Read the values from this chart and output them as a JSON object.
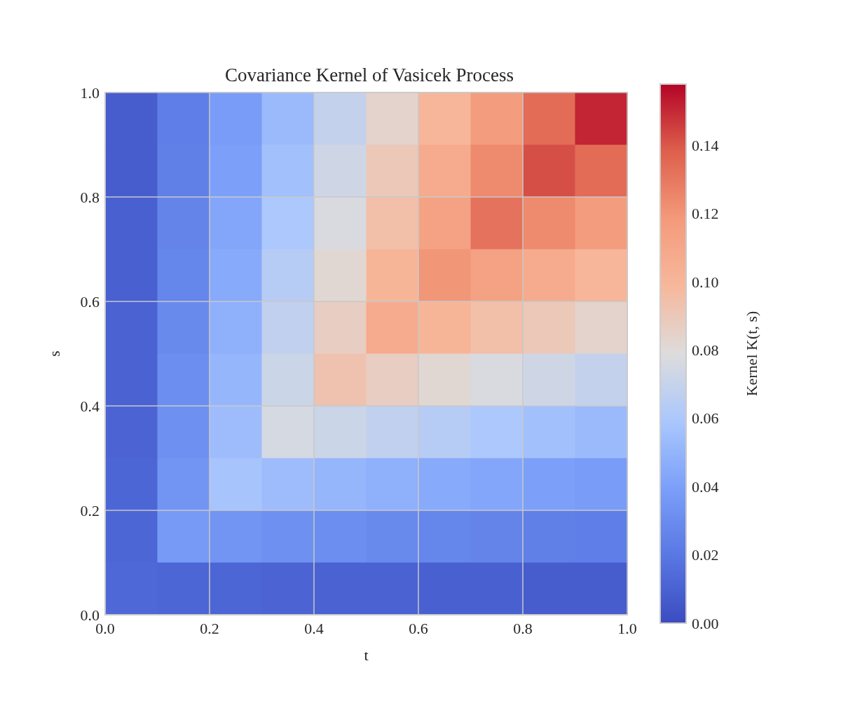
{
  "chart_data": {
    "type": "heatmap",
    "title": "Covariance Kernel of Vasicek Process",
    "xlabel": "t",
    "ylabel": "s",
    "clabel": "Kernel K(t, s)",
    "x": [
      0.05,
      0.15,
      0.25,
      0.35,
      0.45,
      0.55,
      0.65,
      0.75,
      0.85,
      0.95
    ],
    "y": [
      0.95,
      0.85,
      0.75,
      0.65,
      0.55,
      0.45,
      0.35,
      0.25,
      0.15,
      0.05
    ],
    "cells": [
      [
        0.008,
        0.023,
        0.038,
        0.053,
        0.069,
        0.084,
        0.1,
        0.117,
        0.134,
        0.151
      ],
      [
        0.008,
        0.024,
        0.04,
        0.056,
        0.073,
        0.09,
        0.107,
        0.124,
        0.142,
        0.134
      ],
      [
        0.009,
        0.026,
        0.043,
        0.06,
        0.077,
        0.095,
        0.113,
        0.132,
        0.124,
        0.117
      ],
      [
        0.009,
        0.027,
        0.045,
        0.064,
        0.082,
        0.101,
        0.12,
        0.113,
        0.107,
        0.1
      ],
      [
        0.01,
        0.029,
        0.048,
        0.068,
        0.087,
        0.107,
        0.101,
        0.095,
        0.09,
        0.084
      ],
      [
        0.01,
        0.031,
        0.051,
        0.072,
        0.093,
        0.087,
        0.082,
        0.077,
        0.073,
        0.069
      ],
      [
        0.011,
        0.032,
        0.054,
        0.076,
        0.072,
        0.068,
        0.064,
        0.06,
        0.056,
        0.053
      ],
      [
        0.012,
        0.034,
        0.058,
        0.054,
        0.051,
        0.048,
        0.045,
        0.043,
        0.04,
        0.038
      ],
      [
        0.012,
        0.037,
        0.034,
        0.032,
        0.031,
        0.029,
        0.027,
        0.026,
        0.024,
        0.023
      ],
      [
        0.013,
        0.012,
        0.012,
        0.011,
        0.01,
        0.01,
        0.009,
        0.009,
        0.008,
        0.008
      ]
    ],
    "xlim": [
      0,
      1
    ],
    "ylim": [
      0,
      1
    ],
    "xticks": [
      {
        "value": 0,
        "label": "0.0"
      },
      {
        "value": 0.2,
        "label": "0.2"
      },
      {
        "value": 0.4,
        "label": "0.4"
      },
      {
        "value": 0.6,
        "label": "0.6"
      },
      {
        "value": 0.8,
        "label": "0.8"
      },
      {
        "value": 1,
        "label": "1.0"
      }
    ],
    "yticks": [
      {
        "value": 0,
        "label": "0.0"
      },
      {
        "value": 0.2,
        "label": "0.2"
      },
      {
        "value": 0.4,
        "label": "0.4"
      },
      {
        "value": 0.6,
        "label": "0.6"
      },
      {
        "value": 0.8,
        "label": "0.8"
      },
      {
        "value": 1,
        "label": "1.0"
      }
    ],
    "clim": [
      0,
      0.158
    ],
    "cticks": [
      {
        "value": 0,
        "label": "0.00"
      },
      {
        "value": 0.02,
        "label": "0.02"
      },
      {
        "value": 0.04,
        "label": "0.04"
      },
      {
        "value": 0.06,
        "label": "0.06"
      },
      {
        "value": 0.08,
        "label": "0.08"
      },
      {
        "value": 0.1,
        "label": "0.10"
      },
      {
        "value": 0.12,
        "label": "0.12"
      },
      {
        "value": 0.14,
        "label": "0.14"
      }
    ],
    "grid": true
  }
}
